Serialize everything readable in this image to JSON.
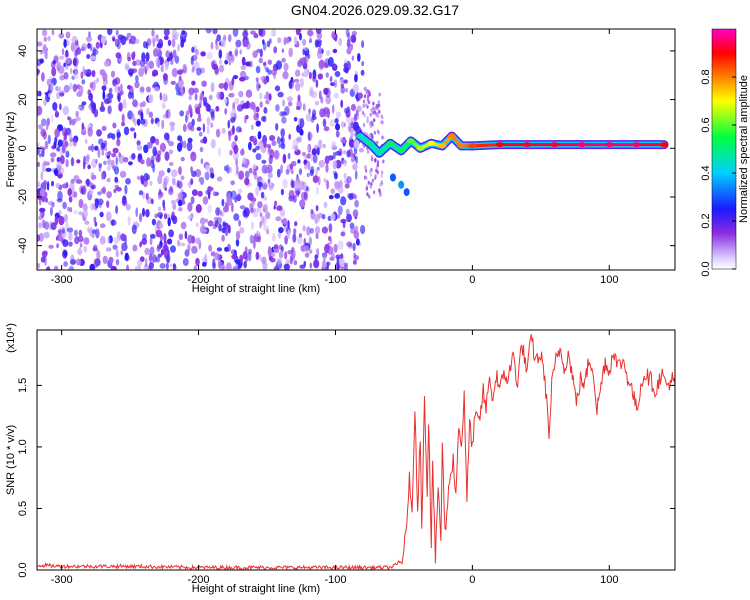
{
  "title": "GN04.2026.029.09.32.G17",
  "chart_data": [
    {
      "type": "heatmap",
      "name": "spectrogram",
      "xlabel": "Height of straight line (km)",
      "ylabel": "Frequency (Hz)",
      "xlim": [
        -318,
        148
      ],
      "ylim": [
        -50,
        49
      ],
      "xticks": [
        -300,
        -200,
        -100,
        0,
        100
      ],
      "yticks": [
        -40,
        -20,
        0,
        20,
        40
      ],
      "colorbar": {
        "label": "Normalized spectral amplitude",
        "range": [
          0,
          1
        ],
        "ticks": [
          0.0,
          0.2,
          0.4,
          0.6,
          0.8
        ],
        "tick_labels": [
          "0.0",
          "0.2",
          "0.4",
          "0.6",
          "0.8"
        ]
      },
      "noise_region": {
        "x_range": [
          -318,
          -80
        ],
        "freq_range": [
          -50,
          49
        ],
        "level_range": [
          0.05,
          0.25
        ]
      },
      "signal_track": [
        {
          "x": -82,
          "freq": 5,
          "amp": 0.45
        },
        {
          "x": -75,
          "freq": 2,
          "amp": 0.5
        },
        {
          "x": -68,
          "freq": -2,
          "amp": 0.45
        },
        {
          "x": -60,
          "freq": 2,
          "amp": 0.55
        },
        {
          "x": -52,
          "freq": -1,
          "amp": 0.5
        },
        {
          "x": -45,
          "freq": 3,
          "amp": 0.6
        },
        {
          "x": -38,
          "freq": 0,
          "amp": 0.65
        },
        {
          "x": -30,
          "freq": 2,
          "amp": 0.7
        },
        {
          "x": -22,
          "freq": 1,
          "amp": 0.75
        },
        {
          "x": -15,
          "freq": 5,
          "amp": 0.8
        },
        {
          "x": -8,
          "freq": 1,
          "amp": 0.8
        },
        {
          "x": 0,
          "freq": 1,
          "amp": 0.85
        },
        {
          "x": 20,
          "freq": 1.5,
          "amp": 0.9
        },
        {
          "x": 40,
          "freq": 1.5,
          "amp": 0.92
        },
        {
          "x": 60,
          "freq": 1.5,
          "amp": 0.92
        },
        {
          "x": 80,
          "freq": 1.5,
          "amp": 0.95
        },
        {
          "x": 100,
          "freq": 1.5,
          "amp": 0.95
        },
        {
          "x": 120,
          "freq": 1.5,
          "amp": 0.95
        },
        {
          "x": 140,
          "freq": 1.5,
          "amp": 0.9
        }
      ],
      "side_branch": [
        {
          "x": -58,
          "freq": -12,
          "amp": 0.3
        },
        {
          "x": -52,
          "freq": -15,
          "amp": 0.35
        },
        {
          "x": -48,
          "freq": -18,
          "amp": 0.3
        }
      ]
    },
    {
      "type": "line",
      "name": "snr",
      "xlabel": "Height of straight line (km)",
      "ylabel": "SNR (10 * v/v)",
      "multiplier_label": "(x10⁴)",
      "xlim": [
        -318,
        148
      ],
      "ylim": [
        0,
        1.95
      ],
      "xticks": [
        -300,
        -200,
        -100,
        0,
        100
      ],
      "yticks": [
        0.0,
        0.5,
        1.0,
        1.5
      ],
      "ytick_labels": [
        "0.0",
        "0.5",
        "1.0",
        "1.5"
      ],
      "color": "#e8312f",
      "series": [
        {
          "name": "SNR",
          "points": [
            [
              -318,
              0.04
            ],
            [
              -300,
              0.03
            ],
            [
              -250,
              0.03
            ],
            [
              -200,
              0.02
            ],
            [
              -150,
              0.02
            ],
            [
              -100,
              0.02
            ],
            [
              -60,
              0.02
            ],
            [
              -52,
              0.06
            ],
            [
              -48,
              0.3
            ],
            [
              -46,
              0.8
            ],
            [
              -44,
              0.4
            ],
            [
              -42,
              1.35
            ],
            [
              -40,
              0.5
            ],
            [
              -38,
              1.1
            ],
            [
              -37,
              0.3
            ],
            [
              -35,
              1.45
            ],
            [
              -33,
              0.6
            ],
            [
              -32,
              1.25
            ],
            [
              -30,
              0.2
            ],
            [
              -29,
              0.9
            ],
            [
              -27,
              0.05
            ],
            [
              -25,
              0.7
            ],
            [
              -23,
              0.25
            ],
            [
              -22,
              1.0
            ],
            [
              -20,
              0.3
            ],
            [
              -18,
              0.55
            ],
            [
              -16,
              0.8
            ],
            [
              -14,
              0.9
            ],
            [
              -12,
              0.6
            ],
            [
              -10,
              1.2
            ],
            [
              -8,
              1.0
            ],
            [
              -6,
              1.4
            ],
            [
              -4,
              0.55
            ],
            [
              -2,
              1.2
            ],
            [
              0,
              1.0
            ],
            [
              2,
              1.25
            ],
            [
              5,
              1.2
            ],
            [
              8,
              1.45
            ],
            [
              10,
              1.3
            ],
            [
              12,
              1.55
            ],
            [
              15,
              1.4
            ],
            [
              18,
              1.6
            ],
            [
              20,
              1.45
            ],
            [
              23,
              1.6
            ],
            [
              26,
              1.55
            ],
            [
              30,
              1.75
            ],
            [
              33,
              1.5
            ],
            [
              36,
              1.85
            ],
            [
              40,
              1.6
            ],
            [
              43,
              1.9
            ],
            [
              46,
              1.7
            ],
            [
              50,
              1.75
            ],
            [
              53,
              1.55
            ],
            [
              56,
              1.1
            ],
            [
              58,
              1.5
            ],
            [
              61,
              1.7
            ],
            [
              64,
              1.8
            ],
            [
              67,
              1.65
            ],
            [
              70,
              1.75
            ],
            [
              73,
              1.6
            ],
            [
              76,
              1.35
            ],
            [
              79,
              1.55
            ],
            [
              82,
              1.5
            ],
            [
              85,
              1.7
            ],
            [
              88,
              1.65
            ],
            [
              91,
              1.3
            ],
            [
              94,
              1.5
            ],
            [
              97,
              1.7
            ],
            [
              100,
              1.6
            ],
            [
              103,
              1.8
            ],
            [
              106,
              1.65
            ],
            [
              110,
              1.7
            ],
            [
              114,
              1.55
            ],
            [
              117,
              1.45
            ],
            [
              120,
              1.3
            ],
            [
              123,
              1.5
            ],
            [
              126,
              1.6
            ],
            [
              130,
              1.55
            ],
            [
              134,
              1.45
            ],
            [
              138,
              1.6
            ],
            [
              142,
              1.5
            ],
            [
              146,
              1.55
            ],
            [
              148,
              1.5
            ]
          ]
        }
      ]
    }
  ]
}
